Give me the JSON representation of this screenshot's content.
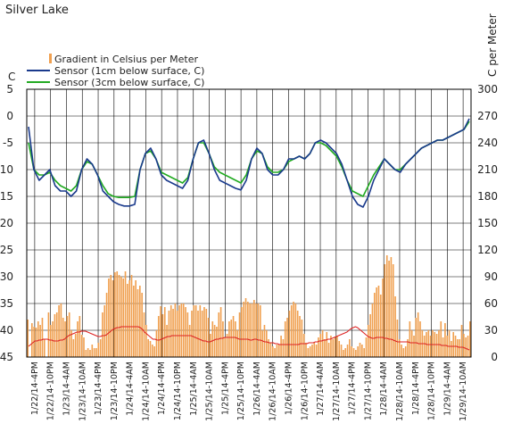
{
  "chart_data": {
    "type": "bar",
    "title": "Silver Lake",
    "left_axis_unit": "C",
    "right_axis_unit": "C per Meter",
    "y_left_range": [
      -45,
      5
    ],
    "y_left_ticks": [
      "5",
      "0",
      "-5",
      "-10",
      "-15",
      "-20",
      "-25",
      "-30",
      "-35",
      "-40",
      "-45"
    ],
    "y_right_range": [
      0,
      300
    ],
    "y_right_ticks": [
      "300",
      "270",
      "240",
      "210",
      "180",
      "150",
      "120",
      "90",
      "60",
      "30",
      "0"
    ],
    "grid": true,
    "legend_position": "top-left",
    "x_categories": [
      "1/22/14-4PM",
      "1/22/14-10PM",
      "1/23/14-4AM",
      "1/23/14-10AM",
      "1/23/14-4PM",
      "1/23/14-10PM",
      "1/24/14-4AM",
      "1/24/14-10AM",
      "1/24/14-4PM",
      "1/24/14-10PM",
      "1/25/14-4AM",
      "1/25/14-10AM",
      "1/25/14-4PM",
      "1/25/14-10PM",
      "1/26/14-4AM",
      "1/26/14-10AM",
      "1/26/14-4PM",
      "1/26/14-10PM",
      "1/27/14-4AM",
      "1/27/14-10AM",
      "1/27/14-4PM",
      "1/27/14-10PM",
      "1/28/14-4AM",
      "1/28/14-10AM",
      "1/28/14-4PM",
      "1/28/14-10PM",
      "1/29/14-4AM",
      "1/29/14-10AM"
    ],
    "legend": [
      {
        "name": "Gradient in Celsius per Meter",
        "color": "#f0a050"
      },
      {
        "name": "Sensor (1cm below surface, C)",
        "color": "#1a3a8c"
      },
      {
        "name": "Sensor (3cm below surface, C)",
        "color": "#22aa22"
      }
    ],
    "gradient_avg_color": "#dd2222",
    "gradient_bars_right_axis": [
      42,
      0,
      38,
      34,
      33,
      40,
      36,
      44,
      20,
      0,
      50,
      36,
      40,
      48,
      50,
      58,
      60,
      44,
      40,
      46,
      50,
      30,
      20,
      26,
      40,
      46,
      25,
      22,
      8,
      10,
      8,
      14,
      10,
      10,
      16,
      20,
      50,
      58,
      72,
      88,
      92,
      86,
      95,
      96,
      92,
      90,
      88,
      96,
      82,
      86,
      92,
      80,
      86,
      76,
      80,
      72,
      50,
      36,
      20,
      18,
      14,
      12,
      30,
      46,
      57,
      48,
      56,
      36,
      52,
      58,
      54,
      60,
      52,
      58,
      60,
      60,
      56,
      50,
      36,
      52,
      58,
      58,
      52,
      58,
      52,
      56,
      54,
      44,
      26,
      40,
      36,
      34,
      50,
      56,
      40,
      22,
      26,
      40,
      42,
      46,
      40,
      30,
      50,
      56,
      62,
      66,
      62,
      60,
      60,
      64,
      60,
      60,
      58,
      30,
      36,
      30,
      20,
      16,
      12,
      10,
      14,
      14,
      24,
      20,
      40,
      44,
      52,
      58,
      62,
      60,
      52,
      46,
      42,
      26,
      16,
      10,
      12,
      14,
      16,
      14,
      22,
      26,
      30,
      20,
      28,
      16,
      24,
      20,
      22,
      24,
      18,
      14,
      8,
      10,
      14,
      20,
      12,
      10,
      8,
      12,
      16,
      14,
      10,
      22,
      36,
      48,
      60,
      72,
      78,
      80,
      70,
      88,
      104,
      114,
      108,
      112,
      104,
      68,
      42,
      20,
      14,
      10,
      12,
      20,
      40,
      30,
      24,
      44,
      50,
      40,
      30,
      24,
      28,
      30,
      24,
      30,
      28,
      26,
      30,
      40,
      22,
      38,
      24,
      30,
      18,
      28,
      24,
      20,
      20,
      36,
      26,
      22,
      24,
      40
    ],
    "gradient_avg_right_axis": [
      12,
      14,
      16,
      18,
      18,
      19,
      19,
      20,
      20,
      20,
      19,
      19,
      18,
      18,
      18,
      19,
      19,
      20,
      22,
      24,
      25,
      26,
      27,
      28,
      28,
      29,
      29,
      29,
      28,
      27,
      26,
      25,
      24,
      23,
      23,
      24,
      24,
      25,
      27,
      29,
      31,
      32,
      33,
      33,
      34,
      34,
      34,
      34,
      34,
      34,
      34,
      34,
      34,
      33,
      31,
      28,
      26,
      24,
      22,
      20,
      20,
      19,
      19,
      20,
      21,
      22,
      23,
      23,
      24,
      24,
      24,
      24,
      24,
      24,
      24,
      24,
      24,
      24,
      23,
      22,
      21,
      20,
      19,
      18,
      18,
      17,
      17,
      18,
      19,
      20,
      20,
      21,
      21,
      22,
      22,
      22,
      22,
      22,
      22,
      21,
      20,
      20,
      20,
      20,
      20,
      19,
      19,
      20,
      20,
      19,
      19,
      18,
      17,
      17,
      16,
      16,
      16,
      15,
      15,
      14,
      14,
      14,
      14,
      14,
      14,
      14,
      14,
      14,
      14,
      15,
      15,
      15,
      15,
      16,
      16,
      16,
      17,
      17,
      18,
      18,
      19,
      19,
      20,
      20,
      21,
      22,
      23,
      24,
      25,
      26,
      27,
      28,
      30,
      32,
      33,
      34,
      33,
      31,
      29,
      27,
      25,
      23,
      22,
      21,
      21,
      22,
      22,
      22,
      22,
      21,
      21,
      20,
      20,
      19,
      18,
      17,
      17,
      17,
      17,
      17,
      17,
      16,
      16,
      16,
      16,
      15,
      15,
      15,
      15,
      14,
      14,
      14,
      14,
      14,
      14,
      14,
      13,
      13,
      13,
      12,
      12,
      12,
      12,
      12,
      11,
      11,
      11,
      10,
      9,
      8
    ],
    "sensor_1cm_c": [
      -2,
      -10,
      -12,
      -11,
      -10,
      -13,
      -14,
      -14,
      -15,
      -14,
      -10,
      -8,
      -9,
      -11,
      -14,
      -15,
      -16,
      -16.5,
      -16.8,
      -16.8,
      -16.5,
      -10,
      -7,
      -6,
      -8,
      -11,
      -12,
      -12.5,
      -13,
      -13.5,
      -12,
      -8,
      -5,
      -4.5,
      -7,
      -10,
      -12,
      -12.5,
      -13,
      -13.5,
      -13.8,
      -12,
      -8,
      -6,
      -7,
      -10,
      -11,
      -11,
      -10,
      -8,
      -8,
      -7.5,
      -8,
      -7,
      -5,
      -4.5,
      -5,
      -6,
      -7,
      -9,
      -12,
      -15,
      -16.5,
      -17,
      -15,
      -12,
      -10,
      -8,
      -9,
      -10,
      -10.5,
      -9,
      -8,
      -7,
      -6,
      -5.5,
      -5,
      -4.5,
      -4.5,
      -4,
      -3.5,
      -3,
      -2.5,
      -0.5
    ],
    "sensor_3cm_c": [
      -5,
      -10,
      -11,
      -11,
      -10.5,
      -12,
      -13,
      -13.5,
      -14,
      -13,
      -10,
      -8.5,
      -9,
      -11,
      -13,
      -14.5,
      -15,
      -15.2,
      -15.2,
      -15.2,
      -15,
      -10,
      -7,
      -6.5,
      -8,
      -10.5,
      -11,
      -11.5,
      -12,
      -12.5,
      -11.5,
      -8,
      -5,
      -5,
      -7,
      -9.5,
      -10.5,
      -11,
      -11.5,
      -12,
      -12.5,
      -11,
      -8,
      -6.5,
      -7,
      -9.5,
      -10.5,
      -10.5,
      -10,
      -8.5,
      -8,
      -7.5,
      -8,
      -7,
      -5,
      -5,
      -5.5,
      -6.5,
      -7.5,
      -9.5,
      -12,
      -14,
      -14.5,
      -15,
      -13,
      -11,
      -9.5,
      -8,
      -9,
      -10,
      -10,
      -9,
      -8,
      -7,
      -6,
      -5.5,
      -5,
      -4.5,
      -4.5,
      -4,
      -3.5,
      -3,
      -2.5,
      -1
    ]
  }
}
